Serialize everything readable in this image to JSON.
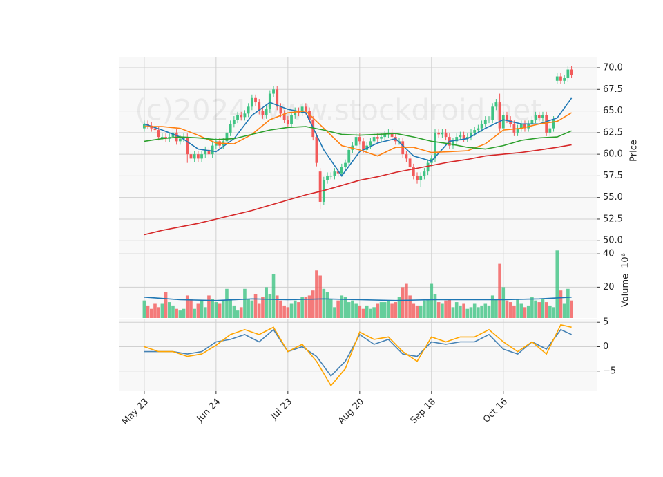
{
  "chart_data": [
    {
      "type": "candlestick",
      "watermark": "(c)2024 www.stockdroid.net",
      "ylabel": "Price",
      "xlim": [
        -6.9,
        126.2
      ],
      "ylim": [
        49.3,
        71.2
      ],
      "yticks": [
        {
          "value": 50,
          "label": "50.0"
        },
        52.5,
        {
          "value": 55,
          "label": "55.0"
        },
        57.5,
        {
          "value": 60,
          "label": "60.0"
        },
        62.5,
        {
          "value": 65,
          "label": "65.0"
        },
        67.5,
        {
          "value": 70,
          "label": "70.0"
        }
      ],
      "grid": true,
      "up_color": "#3fc383",
      "down_color": "#f25a5a",
      "open": [
        63.0,
        63.5,
        63.3,
        63.0,
        62.8,
        62.0,
        62.0,
        61.8,
        62.0,
        62.5,
        61.5,
        61.8,
        62.0,
        60.0,
        59.5,
        60.0,
        59.5,
        60.0,
        60.5,
        60.0,
        61.0,
        61.5,
        61.0,
        61.5,
        62.5,
        63.5,
        64.0,
        64.5,
        64.3,
        64.7,
        65.5,
        66.5,
        66.0,
        65.0,
        64.5,
        65.2,
        67.0,
        67.5,
        65.5,
        64.7,
        64.0,
        63.5,
        64.5,
        65.0,
        64.8,
        65.5,
        65.0,
        64.0,
        62.0,
        58.0,
        54.5,
        57.0,
        57.5,
        57.5,
        58.0,
        57.8,
        58.5,
        59.0,
        60.5,
        61.0,
        62.0,
        61.5,
        60.5,
        61.0,
        61.5,
        62.0,
        61.8,
        62.0,
        62.3,
        62.5,
        62.0,
        61.5,
        61.5,
        60.0,
        59.5,
        58.5,
        57.5,
        57.0,
        57.5,
        58.0,
        59.0,
        59.5,
        62.5,
        62.3,
        62.5,
        62.0,
        61.0,
        61.5,
        62.0,
        62.2,
        61.8,
        62.0,
        62.5,
        62.8,
        63.0,
        63.5,
        64.0,
        64.0,
        65.5,
        66.0,
        63.0,
        64.5,
        64.0,
        63.5,
        62.5,
        63.0,
        63.5,
        63.0,
        63.5,
        64.0,
        64.5,
        64.2,
        64.5,
        62.5,
        63.0,
        68.5,
        69.0,
        68.5,
        68.8,
        69.8
      ],
      "high": [
        63.9,
        63.9,
        63.7,
        63.4,
        63.2,
        62.4,
        62.4,
        62.4,
        62.9,
        62.9,
        62.2,
        62.4,
        62.4,
        60.4,
        60.4,
        60.4,
        60.4,
        60.9,
        60.9,
        61.4,
        61.9,
        61.9,
        61.9,
        62.9,
        63.9,
        64.4,
        64.9,
        64.9,
        65.1,
        65.9,
        66.9,
        66.9,
        66.4,
        65.4,
        65.6,
        67.4,
        67.9,
        67.9,
        65.9,
        65.1,
        64.4,
        64.9,
        65.4,
        65.4,
        65.9,
        65.9,
        65.4,
        64.4,
        62.4,
        58.4,
        57.4,
        57.9,
        57.9,
        58.4,
        58.4,
        58.9,
        59.4,
        60.9,
        61.4,
        62.4,
        62.4,
        61.9,
        61.4,
        61.9,
        62.4,
        62.4,
        62.4,
        62.7,
        62.9,
        62.9,
        62.4,
        61.9,
        61.9,
        60.4,
        59.9,
        58.9,
        57.9,
        57.9,
        58.4,
        59.4,
        59.9,
        62.9,
        62.9,
        62.9,
        62.9,
        62.4,
        61.9,
        62.4,
        62.6,
        62.6,
        62.4,
        62.9,
        63.2,
        63.4,
        63.9,
        64.4,
        64.4,
        65.9,
        66.4,
        67.0,
        64.9,
        64.9,
        64.4,
        63.9,
        63.4,
        63.9,
        63.9,
        63.9,
        64.4,
        64.9,
        64.9,
        64.9,
        64.9,
        63.4,
        64.4,
        69.4,
        69.4,
        69.2,
        70.2,
        70.2
      ],
      "low": [
        62.6,
        62.9,
        62.6,
        62.4,
        61.6,
        61.6,
        61.4,
        61.4,
        61.6,
        61.1,
        61.1,
        61.4,
        59.0,
        59.1,
        59.1,
        59.1,
        59.1,
        59.6,
        59.6,
        59.6,
        60.6,
        60.6,
        60.6,
        61.1,
        62.1,
        63.1,
        63.6,
        63.9,
        63.9,
        64.3,
        65.1,
        65.6,
        64.6,
        64.1,
        64.1,
        64.8,
        66.6,
        65.1,
        64.3,
        63.6,
        63.1,
        63.1,
        64.1,
        64.4,
        64.4,
        64.6,
        63.6,
        61.6,
        58.6,
        53.7,
        54.1,
        56.6,
        57.1,
        57.1,
        57.4,
        57.4,
        58.1,
        58.6,
        60.1,
        60.6,
        61.1,
        60.1,
        60.1,
        60.6,
        61.1,
        61.4,
        61.4,
        61.6,
        61.9,
        61.6,
        61.1,
        61.1,
        59.6,
        59.1,
        58.1,
        57.1,
        56.6,
        56.2,
        57.1,
        57.6,
        58.6,
        59.1,
        61.9,
        61.9,
        61.6,
        60.6,
        60.6,
        61.1,
        61.6,
        61.4,
        61.4,
        61.6,
        62.1,
        62.4,
        62.6,
        63.1,
        63.6,
        63.6,
        65.1,
        62.6,
        62.6,
        63.6,
        63.1,
        62.1,
        62.1,
        62.6,
        62.6,
        62.6,
        63.1,
        63.6,
        63.8,
        63.8,
        62.1,
        62.1,
        62.6,
        68.1,
        68.1,
        68.1,
        68.4,
        68.8
      ],
      "close": [
        63.5,
        63.3,
        63.0,
        62.8,
        62.0,
        62.0,
        61.8,
        62.0,
        62.5,
        61.5,
        61.8,
        62.0,
        60.0,
        59.5,
        60.0,
        59.5,
        60.0,
        60.5,
        60.0,
        61.0,
        61.5,
        61.0,
        61.5,
        62.5,
        63.5,
        64.0,
        64.5,
        64.3,
        64.7,
        65.5,
        66.5,
        66.0,
        65.0,
        64.5,
        65.2,
        67.0,
        67.5,
        65.5,
        64.7,
        64.0,
        63.5,
        64.5,
        65.0,
        64.8,
        65.5,
        65.0,
        64.0,
        62.0,
        59.0,
        54.5,
        57.0,
        57.5,
        57.5,
        58.0,
        57.8,
        58.5,
        59.0,
        60.5,
        61.0,
        62.0,
        61.5,
        60.5,
        61.0,
        61.5,
        62.0,
        61.8,
        62.0,
        62.3,
        62.5,
        62.0,
        61.5,
        61.5,
        60.0,
        59.5,
        58.5,
        57.5,
        57.0,
        57.5,
        58.0,
        59.0,
        59.5,
        62.5,
        62.3,
        62.5,
        62.0,
        61.0,
        61.5,
        62.0,
        62.2,
        61.8,
        62.0,
        62.5,
        62.8,
        63.0,
        63.5,
        64.0,
        64.0,
        65.5,
        66.0,
        63.0,
        64.5,
        64.0,
        63.5,
        62.5,
        63.0,
        63.5,
        63.0,
        63.5,
        64.0,
        64.5,
        64.2,
        64.5,
        62.5,
        63.0,
        64.0,
        69.0,
        68.5,
        68.8,
        69.8,
        69.2
      ],
      "series": [
        {
          "color": "#1f77b4",
          "x": [
            0,
            5,
            10,
            15,
            20,
            25,
            30,
            35,
            40,
            45,
            50,
            55,
            60,
            65,
            70,
            75,
            80,
            85,
            90,
            95,
            100,
            105,
            110,
            115,
            119
          ],
          "values": [
            63.5,
            62.8,
            62.0,
            60.6,
            60.3,
            61.8,
            64.5,
            66.0,
            65.2,
            64.8,
            60.5,
            57.5,
            60.3,
            61.3,
            61.8,
            59.8,
            59.2,
            61.5,
            61.8,
            63.0,
            64.0,
            63.5,
            63.5,
            64.2,
            66.5
          ]
        },
        {
          "color": "#ff7f0e",
          "x": [
            0,
            5,
            10,
            15,
            20,
            25,
            30,
            35,
            40,
            45,
            50,
            55,
            60,
            65,
            70,
            75,
            80,
            85,
            90,
            95,
            100,
            105,
            110,
            115,
            119
          ],
          "values": [
            63.2,
            63.2,
            63.0,
            62.2,
            61.3,
            61.2,
            62.3,
            64.0,
            64.8,
            65.0,
            63.0,
            61.0,
            60.5,
            59.8,
            60.8,
            60.8,
            60.2,
            60.3,
            60.4,
            61.2,
            62.8,
            63.0,
            63.5,
            63.8,
            64.8
          ]
        },
        {
          "color": "#2ca02c",
          "x": [
            0,
            5,
            10,
            15,
            20,
            25,
            30,
            35,
            40,
            45,
            50,
            55,
            60,
            65,
            70,
            75,
            80,
            85,
            90,
            95,
            100,
            105,
            110,
            115,
            119
          ],
          "values": [
            61.5,
            61.8,
            62.0,
            61.9,
            61.7,
            61.8,
            62.3,
            62.8,
            63.1,
            63.2,
            62.8,
            62.3,
            62.2,
            62.3,
            62.4,
            62.0,
            61.5,
            61.2,
            60.8,
            60.6,
            61.0,
            61.6,
            61.9,
            62.0,
            62.7
          ]
        },
        {
          "color": "#d62728",
          "x": [
            0,
            5,
            10,
            15,
            20,
            25,
            30,
            35,
            40,
            45,
            50,
            55,
            60,
            65,
            70,
            75,
            80,
            85,
            90,
            95,
            100,
            105,
            110,
            115,
            119
          ],
          "values": [
            50.7,
            51.2,
            51.6,
            52.0,
            52.5,
            53.0,
            53.5,
            54.1,
            54.7,
            55.3,
            55.8,
            56.4,
            57.0,
            57.4,
            57.9,
            58.3,
            58.7,
            59.1,
            59.4,
            59.8,
            60.0,
            60.2,
            60.5,
            60.8,
            61.1
          ]
        }
      ]
    },
    {
      "type": "bar",
      "ylabel": "Volume",
      "offset_text": "10⁶",
      "xlim": [
        -6.9,
        126.2
      ],
      "ylim": [
        1.5,
        44.2
      ],
      "yticks": [
        20,
        40
      ],
      "grid": true,
      "up_color": "#3fc383",
      "down_color": "#f25a5a",
      "values": [
        12,
        9,
        7,
        10,
        8,
        10,
        17,
        11,
        9,
        7,
        6,
        7,
        15,
        13,
        7,
        10,
        12,
        8,
        15,
        13,
        11,
        10,
        12,
        19,
        13,
        9,
        6,
        8,
        19,
        13,
        12,
        16,
        10,
        14,
        20,
        16,
        28,
        15,
        12,
        9,
        8,
        10,
        12,
        11,
        14,
        14,
        15,
        18,
        30,
        27,
        19,
        17,
        13,
        8,
        12,
        15,
        14,
        11,
        12,
        10,
        9,
        7,
        9,
        7,
        8,
        10,
        11,
        11,
        12,
        10,
        11,
        14,
        20,
        22,
        15,
        10,
        9,
        9,
        12,
        13,
        22,
        16,
        11,
        10,
        12,
        13,
        8,
        11,
        9,
        10,
        7,
        8,
        10,
        8,
        9,
        10,
        9,
        15,
        13,
        34,
        20,
        12,
        11,
        9,
        13,
        10,
        8,
        9,
        14,
        12,
        11,
        13,
        11,
        9,
        8,
        42,
        18,
        10,
        19,
        12
      ],
      "series": [
        {
          "color": "#1f77b4",
          "x": [
            0,
            10,
            20,
            30,
            40,
            50,
            60,
            70,
            80,
            90,
            100,
            110,
            119
          ],
          "values": [
            14,
            12.5,
            12,
            13,
            12.5,
            13,
            12.5,
            12,
            12.5,
            12.5,
            12.5,
            13,
            14
          ]
        }
      ]
    },
    {
      "type": "line",
      "xlim": [
        -6.9,
        126.2
      ],
      "ylim": [
        -9,
        5.6
      ],
      "yticks": [
        {
          "value": -5,
          "label": "−5"
        },
        0,
        5
      ],
      "grid": true,
      "xticks": [
        {
          "value": 0,
          "label": "May 23"
        },
        {
          "value": 20,
          "label": "Jun 24"
        },
        {
          "value": 40,
          "label": "Jul 23"
        },
        {
          "value": 60,
          "label": "Aug 20"
        },
        {
          "value": 80,
          "label": "Sep 18"
        },
        {
          "value": 100,
          "label": "Oct 16"
        }
      ],
      "series": [
        {
          "color": "#4682b4",
          "x": [
            0,
            4,
            8,
            12,
            16,
            20,
            24,
            28,
            32,
            36,
            40,
            44,
            48,
            52,
            56,
            60,
            64,
            68,
            72,
            76,
            80,
            84,
            88,
            92,
            96,
            100,
            104,
            108,
            112,
            116,
            119
          ],
          "values": [
            -1,
            -1,
            -1,
            -1.5,
            -1,
            1,
            1.5,
            2.5,
            1,
            3.5,
            -1,
            0,
            -2,
            -6,
            -3,
            2.5,
            0.5,
            1.5,
            -1.5,
            -2,
            1,
            0.5,
            1,
            1,
            2.5,
            -0.5,
            -1.5,
            1,
            -0.5,
            3.5,
            2.5
          ]
        },
        {
          "color": "#ffa500",
          "x": [
            0,
            4,
            8,
            12,
            16,
            20,
            24,
            28,
            32,
            36,
            40,
            44,
            48,
            52,
            56,
            60,
            64,
            68,
            72,
            76,
            80,
            84,
            88,
            92,
            96,
            100,
            104,
            108,
            112,
            116,
            119
          ],
          "values": [
            0,
            -1,
            -1,
            -2,
            -1.5,
            0.3,
            2.5,
            3.5,
            2.5,
            4,
            -1,
            0.5,
            -3,
            -8,
            -4.5,
            3,
            1.5,
            2,
            -1,
            -3,
            2,
            1,
            2,
            2,
            3.5,
            1,
            -1,
            1,
            -1.5,
            4.5,
            4
          ]
        }
      ]
    }
  ]
}
